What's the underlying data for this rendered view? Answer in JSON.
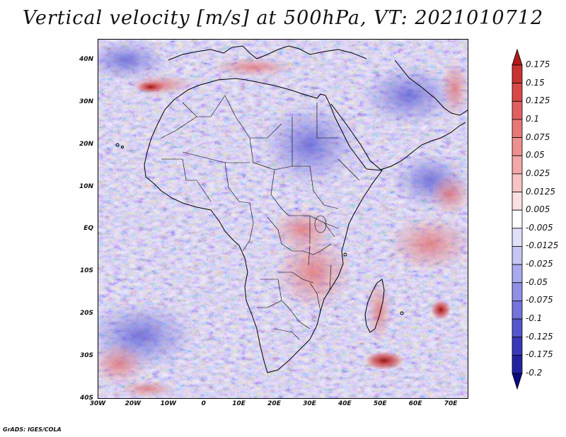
{
  "title": "Vertical velocity [m/s] at 500hPa, VT: 2021010712",
  "footer": "GrADS: IGES/COLA",
  "map": {
    "variable": "Vertical velocity",
    "units": "m/s",
    "level": "500hPa",
    "valid_time": "2021010712",
    "region": "Africa",
    "lon_range": [
      -30,
      75
    ],
    "lat_range": [
      -40,
      45
    ],
    "x_ticks": [
      {
        "lon": -30,
        "label": "30W"
      },
      {
        "lon": -20,
        "label": "20W"
      },
      {
        "lon": -10,
        "label": "10W"
      },
      {
        "lon": 0,
        "label": "0"
      },
      {
        "lon": 10,
        "label": "10E"
      },
      {
        "lon": 20,
        "label": "20E"
      },
      {
        "lon": 30,
        "label": "30E"
      },
      {
        "lon": 40,
        "label": "40E"
      },
      {
        "lon": 50,
        "label": "50E"
      },
      {
        "lon": 60,
        "label": "60E"
      },
      {
        "lon": 70,
        "label": "70E"
      }
    ],
    "y_ticks": [
      {
        "lat": 40,
        "label": "40N"
      },
      {
        "lat": 30,
        "label": "30N"
      },
      {
        "lat": 20,
        "label": "20N"
      },
      {
        "lat": 10,
        "label": "10N"
      },
      {
        "lat": 0,
        "label": "EQ"
      },
      {
        "lat": -10,
        "label": "10S"
      },
      {
        "lat": -20,
        "label": "20S"
      },
      {
        "lat": -30,
        "label": "30S"
      },
      {
        "lat": -40,
        "label": "40S"
      }
    ]
  },
  "colorbar": {
    "levels": [
      "0.175",
      "0.15",
      "0.125",
      "0.1",
      "0.075",
      "0.05",
      "0.025",
      "0.0125",
      "0.005",
      "-0.005",
      "-0.0125",
      "-0.025",
      "-0.05",
      "-0.075",
      "-0.1",
      "-0.125",
      "-0.175",
      "-0.2"
    ],
    "colors": [
      "#b01c1c",
      "#c83232",
      "#d84848",
      "#e06060",
      "#e87878",
      "#ee9090",
      "#f2a8a8",
      "#f6c4c4",
      "#fae0e0",
      "#ffffff",
      "#e0e0fa",
      "#c6c6f4",
      "#aaaaee",
      "#9090e6",
      "#7474dc",
      "#5656cc",
      "#3838b8",
      "#2222a0",
      "#0a0a80"
    ]
  }
}
